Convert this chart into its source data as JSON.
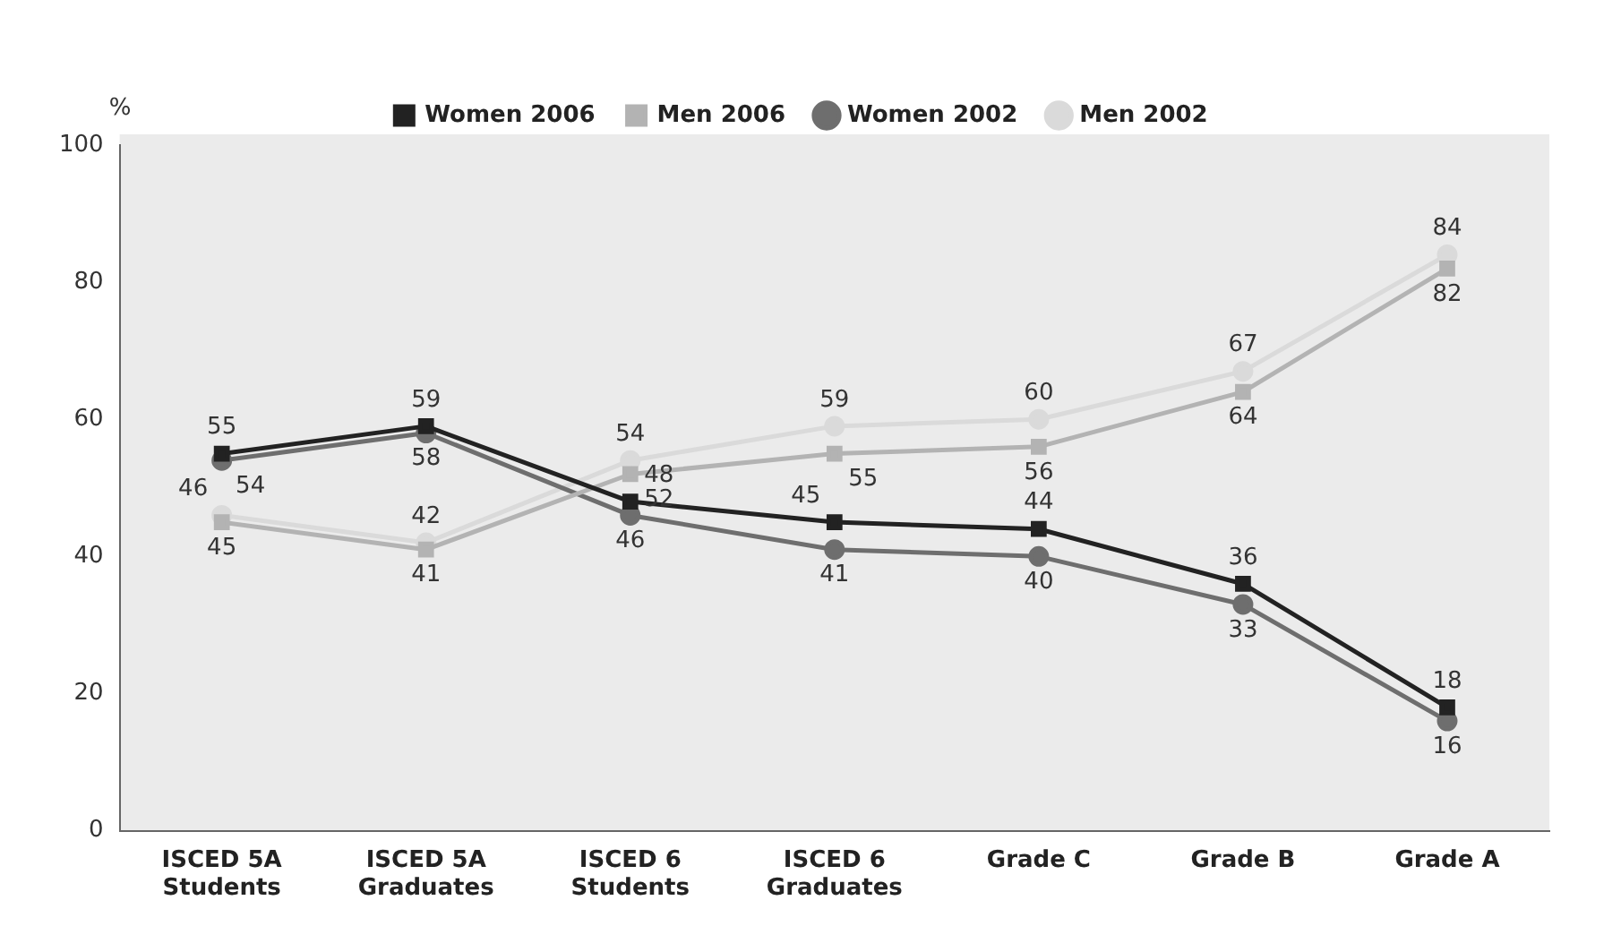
{
  "chart_data": {
    "type": "line",
    "ylabel": "%",
    "categories": [
      "ISCED 5A Students",
      "ISCED 5A Graduates",
      "ISCED 6 Students",
      "ISCED 6 Graduates",
      "Grade C",
      "Grade B",
      "Grade A"
    ],
    "ylim": [
      0,
      100
    ],
    "yticks": [
      0,
      20,
      40,
      60,
      80,
      100
    ],
    "grid": false,
    "legend": "top",
    "data_labels": true,
    "line_style": "solid",
    "series": [
      {
        "name": "Women 2006",
        "color": "#222222",
        "marker": "square",
        "values": [
          55,
          59,
          48,
          45,
          44,
          36,
          18
        ]
      },
      {
        "name": "Men 2006",
        "color": "#b3b3b3",
        "marker": "square",
        "values": [
          45,
          41,
          52,
          55,
          56,
          64,
          82
        ]
      },
      {
        "name": "Women 2002",
        "color": "#6e6e6e",
        "marker": "circle",
        "values": [
          54,
          58,
          46,
          41,
          40,
          33,
          16
        ]
      },
      {
        "name": "Men 2002",
        "color": "#dadada",
        "marker": "circle",
        "values": [
          46,
          42,
          54,
          59,
          60,
          67,
          84
        ]
      }
    ]
  }
}
